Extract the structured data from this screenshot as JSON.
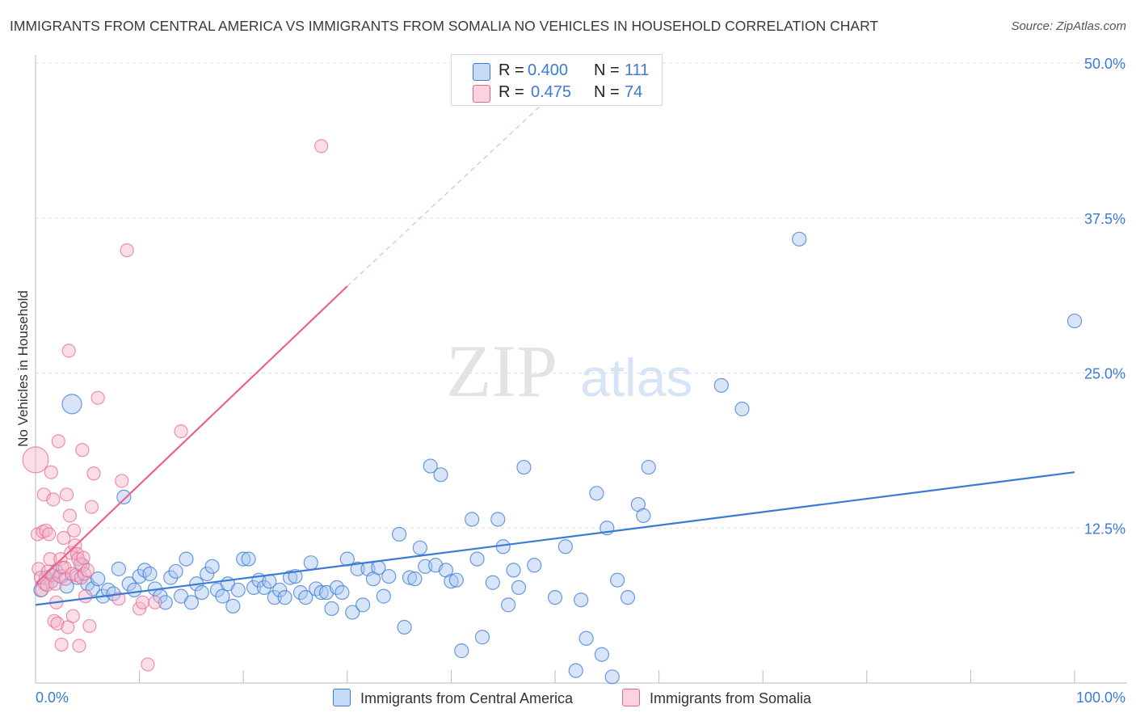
{
  "title": "IMMIGRANTS FROM CENTRAL AMERICA VS IMMIGRANTS FROM SOMALIA NO VEHICLES IN HOUSEHOLD CORRELATION CHART",
  "source": "Source: ZipAtlas.com",
  "watermark": {
    "zip": "ZIP",
    "atlas": "atlas"
  },
  "legend": {
    "series1": {
      "r_label": "R =",
      "r_value": "0.400",
      "n_label": "N =",
      "n_value": "111"
    },
    "series2": {
      "r_label": "R =",
      "r_value": "0.475",
      "n_label": "N =",
      "n_value": "74"
    }
  },
  "colors": {
    "blue": "#3a7bd5",
    "blue_fill": "#a9c6ef",
    "pink": "#e8648f",
    "pink_fill": "#f5b6c9",
    "grid": "#e0e0e0",
    "tick_text": "#3a7bd5"
  },
  "chart_data": {
    "type": "scatter",
    "title": "IMMIGRANTS FROM CENTRAL AMERICA VS IMMIGRANTS FROM SOMALIA NO VEHICLES IN HOUSEHOLD CORRELATION CHART",
    "xlabel": "",
    "ylabel": "No Vehicles in Household",
    "xlim": [
      0,
      100
    ],
    "ylim": [
      0,
      50
    ],
    "x_tick_labels": [
      "0.0%",
      "100.0%"
    ],
    "y_tick_labels": [
      "12.5%",
      "25.0%",
      "37.5%",
      "50.0%"
    ],
    "y_ticks": [
      12.5,
      25,
      37.5,
      50
    ],
    "grid": "dashed horizontal",
    "legend_position": "top-center and bottom",
    "series": [
      {
        "name": "Immigrants from Central America",
        "color": "#3a7bd5",
        "trend": {
          "x": [
            0,
            100
          ],
          "y": [
            6.3,
            17.0
          ]
        },
        "points": [
          [
            0.5,
            7.5
          ],
          [
            1,
            8.5
          ],
          [
            1.5,
            8.2
          ],
          [
            2,
            9
          ],
          [
            2.5,
            8.6
          ],
          [
            3,
            7.8
          ],
          [
            3.5,
            22.5
          ],
          [
            4,
            8.5
          ],
          [
            4.5,
            9.5
          ],
          [
            5,
            8
          ],
          [
            5.5,
            7.6
          ],
          [
            6,
            8.4
          ],
          [
            6.5,
            7
          ],
          [
            7,
            7.5
          ],
          [
            7.5,
            7.2
          ],
          [
            8,
            9.2
          ],
          [
            8.5,
            15
          ],
          [
            9,
            8
          ],
          [
            9.5,
            7.5
          ],
          [
            10,
            8.6
          ],
          [
            10.5,
            9.1
          ],
          [
            11,
            8.8
          ],
          [
            11.5,
            7.6
          ],
          [
            12,
            7
          ],
          [
            12.5,
            6.5
          ],
          [
            13,
            8.5
          ],
          [
            13.5,
            9
          ],
          [
            14,
            7
          ],
          [
            14.5,
            10
          ],
          [
            15,
            6.5
          ],
          [
            15.5,
            8
          ],
          [
            16,
            7.3
          ],
          [
            16.5,
            8.8
          ],
          [
            17,
            9.4
          ],
          [
            17.5,
            7.5
          ],
          [
            18,
            7
          ],
          [
            18.5,
            8
          ],
          [
            19,
            6.2
          ],
          [
            19.5,
            7.5
          ],
          [
            20,
            10
          ],
          [
            20.5,
            10
          ],
          [
            21,
            7.7
          ],
          [
            21.5,
            8.3
          ],
          [
            22,
            7.7
          ],
          [
            22.5,
            8.2
          ],
          [
            23,
            6.9
          ],
          [
            23.5,
            7.5
          ],
          [
            24,
            6.9
          ],
          [
            24.5,
            8.5
          ],
          [
            25,
            8.6
          ],
          [
            25.5,
            7.3
          ],
          [
            26,
            6.9
          ],
          [
            26.5,
            9.7
          ],
          [
            27,
            7.6
          ],
          [
            27.5,
            7.3
          ],
          [
            28,
            7.3
          ],
          [
            28.5,
            6.0
          ],
          [
            29,
            7.7
          ],
          [
            29.5,
            7.3
          ],
          [
            30,
            10
          ],
          [
            30.5,
            5.7
          ],
          [
            31,
            9.2
          ],
          [
            31.5,
            6.3
          ],
          [
            32,
            9.2
          ],
          [
            32.5,
            8.4
          ],
          [
            33,
            9.3
          ],
          [
            33.5,
            7.0
          ],
          [
            34,
            8.6
          ],
          [
            35,
            12
          ],
          [
            35.5,
            4.5
          ],
          [
            36,
            8.5
          ],
          [
            36.5,
            8.4
          ],
          [
            37,
            10.9
          ],
          [
            37.5,
            9.4
          ],
          [
            38,
            17.5
          ],
          [
            38.5,
            9.5
          ],
          [
            39,
            16.8
          ],
          [
            39.5,
            9.1
          ],
          [
            40,
            8.2
          ],
          [
            40.5,
            8.3
          ],
          [
            41,
            2.6
          ],
          [
            42,
            13.2
          ],
          [
            42.5,
            10.0
          ],
          [
            43,
            3.7
          ],
          [
            44,
            8.1
          ],
          [
            44.5,
            13.2
          ],
          [
            45,
            11.0
          ],
          [
            45.5,
            6.3
          ],
          [
            46,
            9.1
          ],
          [
            46.5,
            7.7
          ],
          [
            47,
            17.4
          ],
          [
            48,
            9.5
          ],
          [
            50,
            6.9
          ],
          [
            51,
            11
          ],
          [
            52,
            1.0
          ],
          [
            52.5,
            6.7
          ],
          [
            53,
            3.6
          ],
          [
            54,
            15.3
          ],
          [
            54.5,
            2.3
          ],
          [
            55,
            12.5
          ],
          [
            55.5,
            0.5
          ],
          [
            56,
            8.3
          ],
          [
            57,
            6.9
          ],
          [
            58,
            14.4
          ],
          [
            58.5,
            13.5
          ],
          [
            59,
            17.4
          ],
          [
            66,
            24.0
          ],
          [
            68,
            22.1
          ],
          [
            73.5,
            35.8
          ],
          [
            100,
            29.2
          ]
        ]
      },
      {
        "name": "Immigrants from Somalia",
        "color": "#e8648f",
        "trend": {
          "x": [
            0,
            30
          ],
          "y": [
            8.0,
            32.0
          ]
        },
        "trend_dashed": {
          "x": [
            30,
            53
          ],
          "y": [
            32.0,
            50.0
          ]
        },
        "points": [
          [
            0,
            18
          ],
          [
            0.2,
            12
          ],
          [
            0.3,
            9.2
          ],
          [
            0.5,
            8.5
          ],
          [
            0.6,
            7.5
          ],
          [
            0.7,
            12.2
          ],
          [
            0.8,
            15.2
          ],
          [
            0.9,
            8
          ],
          [
            1,
            12.3
          ],
          [
            1.1,
            7.9
          ],
          [
            1.2,
            9
          ],
          [
            1.3,
            12
          ],
          [
            1.4,
            10
          ],
          [
            1.5,
            17
          ],
          [
            1.6,
            8.7
          ],
          [
            1.7,
            14.8
          ],
          [
            1.8,
            5
          ],
          [
            1.9,
            8
          ],
          [
            2,
            6.5
          ],
          [
            2.1,
            4.8
          ],
          [
            2.2,
            19.5
          ],
          [
            2.3,
            8.6
          ],
          [
            2.4,
            10
          ],
          [
            2.5,
            3.1
          ],
          [
            2.6,
            9.3
          ],
          [
            2.7,
            11.7
          ],
          [
            2.8,
            9.3
          ],
          [
            2.9,
            8.4
          ],
          [
            3,
            15.2
          ],
          [
            3.1,
            4.5
          ],
          [
            3.2,
            26.8
          ],
          [
            3.3,
            13.5
          ],
          [
            3.4,
            10.5
          ],
          [
            3.5,
            8.8
          ],
          [
            3.6,
            5.4
          ],
          [
            3.7,
            12.3
          ],
          [
            3.8,
            11.1
          ],
          [
            3.9,
            8.7
          ],
          [
            4,
            10.4
          ],
          [
            4.1,
            10.0
          ],
          [
            4.2,
            3.0
          ],
          [
            4.3,
            9.6
          ],
          [
            4.4,
            8.5
          ],
          [
            4.5,
            18.8
          ],
          [
            4.6,
            10.1
          ],
          [
            4.7,
            8.8
          ],
          [
            4.8,
            7.0
          ],
          [
            5,
            9.1
          ],
          [
            5.2,
            4.6
          ],
          [
            5.4,
            14.2
          ],
          [
            5.6,
            16.9
          ],
          [
            6,
            23
          ],
          [
            8,
            6.8
          ],
          [
            8.3,
            16.3
          ],
          [
            8.8,
            34.9
          ],
          [
            10,
            6.0
          ],
          [
            10.3,
            6.5
          ],
          [
            10.8,
            1.5
          ],
          [
            11.5,
            6.5
          ],
          [
            14,
            20.3
          ],
          [
            27.5,
            43.3
          ]
        ]
      }
    ]
  },
  "bottom_legend": {
    "series1": "Immigrants from Central America",
    "series2": "Immigrants from Somalia"
  }
}
